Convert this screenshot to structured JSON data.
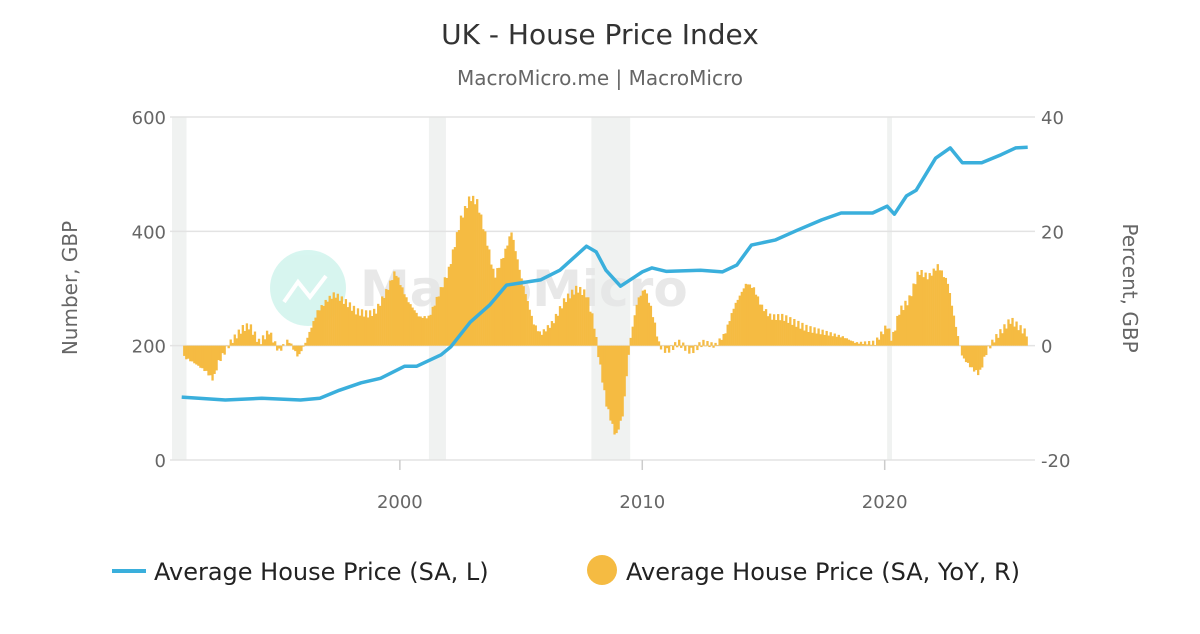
{
  "chart_data": {
    "type": "bar+line",
    "title": "UK - House Price Index",
    "subtitle": "MacroMicro.me | MacroMicro",
    "watermark": "MacroMicro",
    "xlim": [
      1990.6,
      2026.2
    ],
    "x_ticks": [
      2000,
      2010,
      2020
    ],
    "x_tick_labels": [
      "2000",
      "2010",
      "2020"
    ],
    "y_left": {
      "label": "Number, GBP",
      "lim": [
        0,
        600
      ],
      "ticks": [
        0,
        200,
        400,
        600
      ],
      "tick_labels": [
        "0",
        "200",
        "400",
        "600"
      ]
    },
    "y_right": {
      "label": "Percent, GBP",
      "lim": [
        -20,
        40
      ],
      "ticks": [
        -20,
        0,
        20,
        40
      ],
      "tick_labels": [
        "-20",
        "0",
        "20",
        "40"
      ]
    },
    "grid": true,
    "legend_position": "bottom",
    "recession_bands": [
      [
        1990.6,
        1991.2
      ],
      [
        2001.2,
        2001.9
      ],
      [
        2007.9,
        2009.5
      ],
      [
        2020.1,
        2020.3
      ]
    ],
    "colors": {
      "line": "#3aafdc",
      "bar": "#f5bb42",
      "band": "#f0f2f1",
      "grid": "#e3e3e3"
    },
    "series": [
      {
        "name": "Average House Price (SA, L)",
        "type": "line",
        "axis": "left",
        "x": [
          1991.0,
          1992.8,
          1994.3,
          1995.9,
          1996.7,
          1997.5,
          1998.4,
          1999.2,
          2000.2,
          2000.7,
          2001.7,
          2002.1,
          2002.9,
          2003.7,
          2004.4,
          2005.8,
          2006.6,
          2007.7,
          2008.1,
          2008.5,
          2009.1,
          2010.0,
          2010.4,
          2011.0,
          2012.4,
          2013.3,
          2013.9,
          2014.5,
          2015.5,
          2016.4,
          2017.4,
          2018.2,
          2019.5,
          2020.1,
          2020.4,
          2020.9,
          2021.3,
          2022.1,
          2022.7,
          2023.2,
          2024.0,
          2024.8,
          2025.4,
          2025.9
        ],
        "values": [
          110,
          105,
          108,
          105,
          108,
          122,
          135,
          143,
          164,
          164,
          184,
          198,
          241,
          271,
          306,
          315,
          332,
          374,
          364,
          332,
          304,
          329,
          336,
          330,
          332,
          329,
          341,
          376,
          385,
          402,
          420,
          432,
          432,
          444,
          430,
          462,
          472,
          528,
          546,
          520,
          520,
          534,
          546,
          547
        ]
      },
      {
        "name": "Average House Price (SA, YoY, R)",
        "type": "bar",
        "axis": "right",
        "x": [
          1991.1,
          1991.5,
          1992.0,
          1992.3,
          1992.5,
          1993.0,
          1993.5,
          1993.8,
          1994.2,
          1994.6,
          1995.0,
          1995.4,
          1995.8,
          1996.1,
          1996.6,
          1997.0,
          1997.3,
          1997.8,
          1998.2,
          1998.7,
          1999.0,
          1999.5,
          1999.8,
          2000.3,
          2000.8,
          2001.2,
          2001.6,
          2002.0,
          2002.5,
          2002.9,
          2003.2,
          2003.6,
          2003.9,
          2004.3,
          2004.6,
          2005.0,
          2005.5,
          2005.8,
          2006.3,
          2006.8,
          2007.3,
          2007.7,
          2008.0,
          2008.2,
          2008.5,
          2008.9,
          2009.2,
          2009.4,
          2009.5,
          2009.8,
          2010.1,
          2010.4,
          2010.7,
          2011.0,
          2011.5,
          2012.0,
          2012.5,
          2013.0,
          2013.4,
          2013.8,
          2014.3,
          2014.6,
          2014.9,
          2015.3,
          2015.8,
          2016.3,
          2016.8,
          2017.3,
          2017.8,
          2018.3,
          2018.8,
          2019.3,
          2019.6,
          2020.1,
          2020.3,
          2020.6,
          2021.0,
          2021.4,
          2021.8,
          2022.2,
          2022.6,
          2022.9,
          2023.2,
          2023.6,
          2023.9,
          2024.2,
          2024.5,
          2024.9,
          2025.2,
          2025.6,
          2025.9
        ],
        "values": [
          -2,
          -3,
          -4.5,
          -6,
          -3,
          0.5,
          3,
          3.5,
          0.5,
          2.5,
          -1,
          1,
          -2,
          0.5,
          6,
          8,
          9,
          7.5,
          6,
          5.5,
          6,
          10,
          13,
          8,
          5,
          5,
          9,
          13,
          22,
          26,
          25,
          18,
          12,
          16,
          20,
          12,
          4,
          2,
          4,
          8,
          10,
          9,
          4,
          -2,
          -10,
          -16,
          -12,
          -3,
          1,
          8,
          10,
          6,
          0,
          -1,
          0.5,
          -1,
          0.5,
          0,
          2,
          7,
          11,
          10,
          7,
          5,
          5,
          4,
          3,
          2.5,
          2,
          1.5,
          0.5,
          0.5,
          0.5,
          3.5,
          1,
          6,
          8,
          13,
          12,
          14,
          11,
          4,
          -2,
          -4,
          -5,
          -1,
          1,
          3,
          4.5,
          3,
          2
        ]
      }
    ]
  }
}
